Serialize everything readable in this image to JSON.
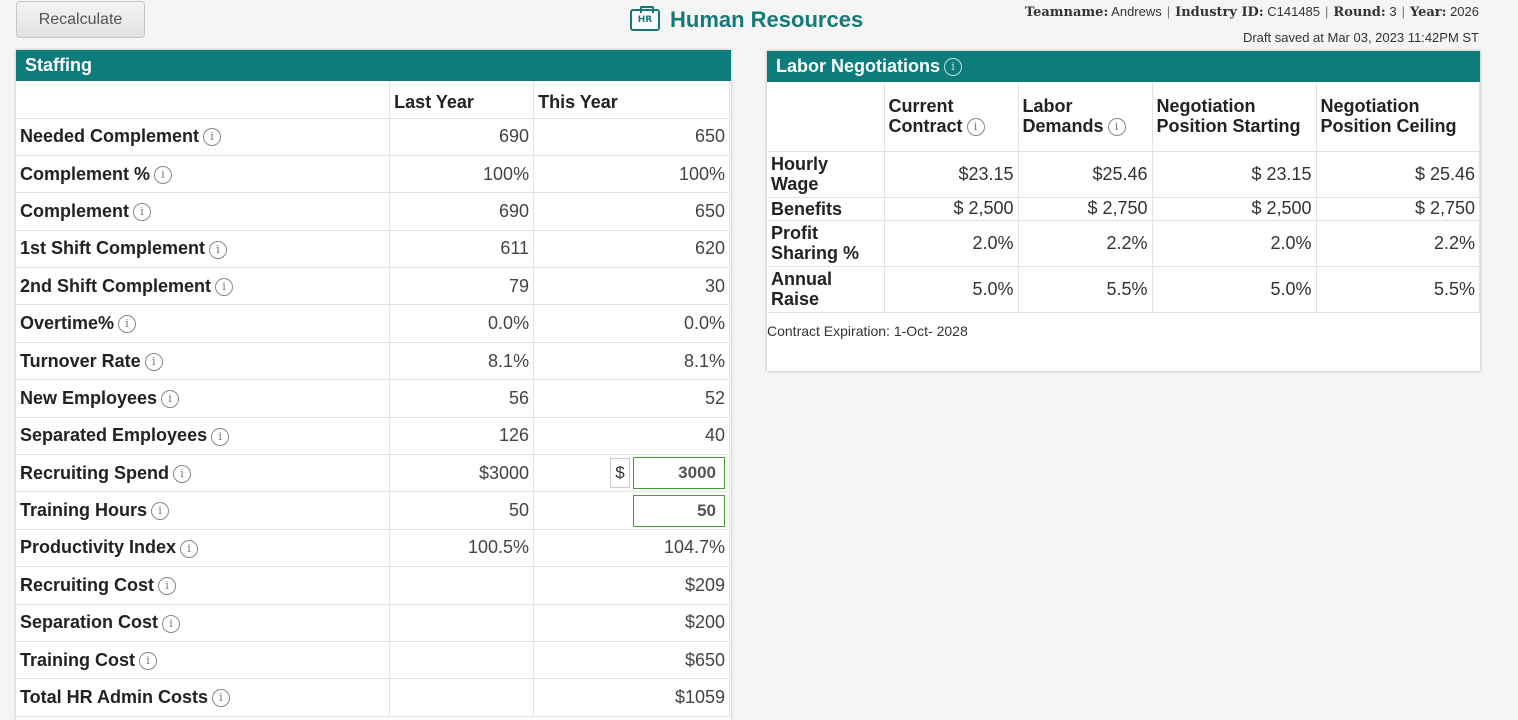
{
  "toolbar": {
    "recalculate_label": "Recalculate"
  },
  "header": {
    "icon_text": "HR",
    "title": "Human Resources",
    "team": {
      "teamname_label": "Teamname:",
      "teamname": "Andrews",
      "industry_label": "Industry ID:",
      "industry": "C141485",
      "round_label": "Round:",
      "round": "3",
      "year_label": "Year:",
      "year": "2026"
    },
    "draft_saved": "Draft saved at Mar 03, 2023 11:42PM ST"
  },
  "info_glyph": "i",
  "staffing": {
    "title": "Staffing",
    "col_last": "Last Year",
    "col_this": "This Year",
    "rows": [
      {
        "label": "Needed Complement",
        "last": "690",
        "this": "650"
      },
      {
        "label": "Complement %",
        "last": "100%",
        "this": "100%"
      },
      {
        "label": "Complement",
        "last": "690",
        "this": "650"
      },
      {
        "label": "1st Shift Complement",
        "last": "611",
        "this": "620"
      },
      {
        "label": "2nd Shift Complement",
        "last": "79",
        "this": "30"
      },
      {
        "label": "Overtime%",
        "last": "0.0%",
        "this": "0.0%"
      },
      {
        "label": "Turnover Rate",
        "last": "8.1%",
        "this": "8.1%"
      },
      {
        "label": "New Employees",
        "last": "56",
        "this": "52"
      },
      {
        "label": "Separated Employees",
        "last": "126",
        "this": "40"
      },
      {
        "label": "Recruiting Spend",
        "last": "$3000",
        "this_prefix": "$",
        "this_input": "3000"
      },
      {
        "label": "Training Hours",
        "last": "50",
        "this_input": "50"
      },
      {
        "label": "Productivity Index",
        "last": "100.5%",
        "this": "104.7%"
      },
      {
        "label": "Recruiting Cost",
        "last": "",
        "this": "$209"
      },
      {
        "label": "Separation Cost",
        "last": "",
        "this": "$200"
      },
      {
        "label": "Training Cost",
        "last": "",
        "this": "$650"
      },
      {
        "label": "Total HR Admin Costs",
        "last": "",
        "this": "$1059"
      }
    ]
  },
  "labor": {
    "title": "Labor Negotiations",
    "col_current": "Current Contract",
    "col_demands": "Labor Demands",
    "col_starting": "Negotiation Position Starting",
    "col_ceiling": "Negotiation Position Ceiling",
    "rows": [
      {
        "label": "Hourly Wage",
        "current": "$23.15",
        "demands": "$25.46",
        "starting": "$ 23.15",
        "ceiling": "$ 25.46"
      },
      {
        "label": "Benefits",
        "current": "$ 2,500",
        "demands": "$ 2,750",
        "starting": "$ 2,500",
        "ceiling": "$ 2,750"
      },
      {
        "label": "Profit Sharing %",
        "current": "2.0%",
        "demands": "2.2%",
        "starting": "2.0%",
        "ceiling": "2.2%"
      },
      {
        "label": "Annual Raise",
        "current": "5.0%",
        "demands": "5.5%",
        "starting": "5.0%",
        "ceiling": "5.5%"
      }
    ],
    "contract_expiration": "Contract Expiration: 1-Oct- 2028"
  }
}
